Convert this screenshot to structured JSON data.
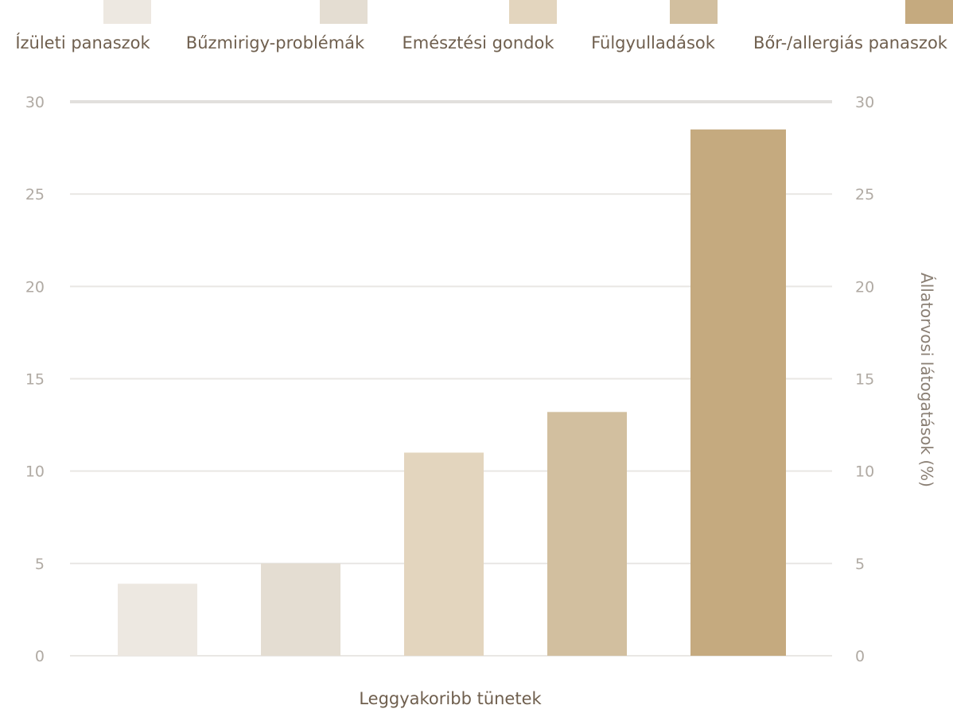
{
  "chart_data": {
    "type": "bar",
    "categories": [
      "Ízületi panaszok",
      "Bűzmirigy-problémák",
      "Emésztési gondok",
      "Fülgyulladások",
      "Bőr-/allergiás panaszok"
    ],
    "values": [
      3.9,
      5.0,
      11.0,
      13.2,
      28.5
    ],
    "colors": [
      "#ede8e1",
      "#e4ddd2",
      "#e3d5be",
      "#d2bf9f",
      "#c5aa7f"
    ],
    "xlabel": "Leggyakoribb tünetek",
    "ylabel_right": "Állatorvosi látogatások (%)",
    "ylim": [
      0,
      30
    ],
    "yticks": [
      0,
      5,
      10,
      15,
      20,
      25,
      30
    ],
    "grid": true,
    "legend_position": "top"
  }
}
